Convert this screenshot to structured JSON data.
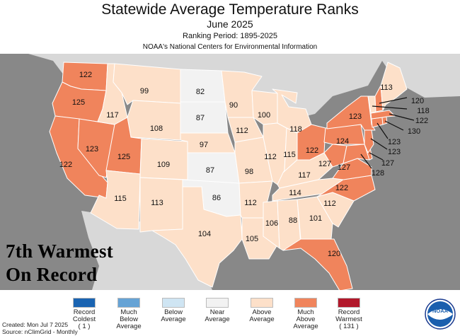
{
  "header": {
    "title": "Statewide Average Temperature Ranks",
    "subtitle": "June 2025",
    "period": "Ranking Period: 1895-2025",
    "source_line": "NOAA's National Centers for Environmental Information"
  },
  "callout": {
    "line1": "7th Warmest",
    "line2": "On Record"
  },
  "colors": {
    "much_above": "#f0845c",
    "above": "#fde0c9",
    "near": "#f2f2f2",
    "ocean": "#888888",
    "border": "#ffffff"
  },
  "legend": [
    {
      "label": "Record\nColdest\n( 1 )",
      "color": "#1a64b2"
    },
    {
      "label": "Much\nBelow\nAverage",
      "color": "#66a3d5"
    },
    {
      "label": "Below\nAverage",
      "color": "#cfe5f3"
    },
    {
      "label": "Near\nAverage",
      "color": "#f2f2f2"
    },
    {
      "label": "Above\nAverage",
      "color": "#fde0c9"
    },
    {
      "label": "Much\nAbove\nAverage",
      "color": "#f0845c"
    },
    {
      "label": "Record\nWarmest\n( 131 )",
      "color": "#b2182b"
    }
  ],
  "footer": {
    "created": "Created: Mon Jul  7 2025",
    "source": "Source: nClimGrid - Monthly"
  },
  "logo": {
    "text": "NOAA"
  },
  "states": [
    {
      "name": "WA",
      "rank": "122"
    },
    {
      "name": "OR",
      "rank": "125"
    },
    {
      "name": "CA",
      "rank": "122"
    },
    {
      "name": "NV",
      "rank": "123"
    },
    {
      "name": "ID",
      "rank": "117"
    },
    {
      "name": "MT",
      "rank": "99"
    },
    {
      "name": "WY",
      "rank": "108"
    },
    {
      "name": "UT",
      "rank": "125"
    },
    {
      "name": "AZ",
      "rank": "115"
    },
    {
      "name": "CO",
      "rank": "109"
    },
    {
      "name": "NM",
      "rank": "113"
    },
    {
      "name": "ND",
      "rank": "82"
    },
    {
      "name": "SD",
      "rank": "87"
    },
    {
      "name": "NE",
      "rank": "97"
    },
    {
      "name": "KS",
      "rank": "87"
    },
    {
      "name": "OK",
      "rank": "86"
    },
    {
      "name": "TX",
      "rank": "104"
    },
    {
      "name": "MN",
      "rank": "90"
    },
    {
      "name": "IA",
      "rank": "112"
    },
    {
      "name": "MO",
      "rank": "98"
    },
    {
      "name": "AR",
      "rank": "112"
    },
    {
      "name": "LA",
      "rank": "105"
    },
    {
      "name": "WI",
      "rank": "100"
    },
    {
      "name": "IL",
      "rank": "112"
    },
    {
      "name": "MI",
      "rank": "118"
    },
    {
      "name": "IN",
      "rank": "115"
    },
    {
      "name": "OH",
      "rank": "122"
    },
    {
      "name": "KY",
      "rank": "117"
    },
    {
      "name": "TN",
      "rank": "114"
    },
    {
      "name": "MS",
      "rank": "106"
    },
    {
      "name": "AL",
      "rank": "88"
    },
    {
      "name": "GA",
      "rank": "101"
    },
    {
      "name": "FL",
      "rank": "120"
    },
    {
      "name": "SC",
      "rank": "112"
    },
    {
      "name": "NC",
      "rank": "122"
    },
    {
      "name": "VA",
      "rank": "127"
    },
    {
      "name": "WV",
      "rank": "127"
    },
    {
      "name": "PA",
      "rank": "124"
    },
    {
      "name": "NY",
      "rank": "123"
    },
    {
      "name": "ME",
      "rank": "113"
    },
    {
      "name": "NH",
      "rank": "120"
    },
    {
      "name": "VT",
      "rank": "118"
    },
    {
      "name": "MA",
      "rank": "122"
    },
    {
      "name": "RI",
      "rank": "130"
    },
    {
      "name": "CT",
      "rank": "123"
    },
    {
      "name": "NJ",
      "rank": "123"
    },
    {
      "name": "DE",
      "rank": "127"
    },
    {
      "name": "MD",
      "rank": "128"
    }
  ]
}
